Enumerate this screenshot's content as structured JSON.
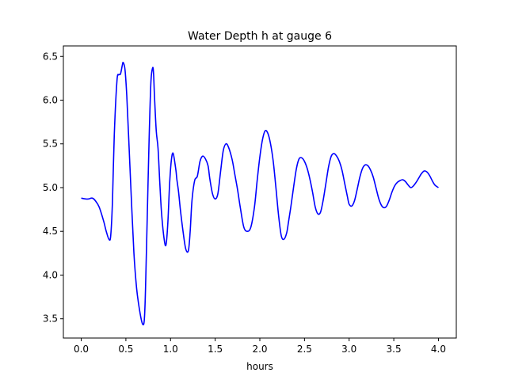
{
  "chart_data": {
    "type": "line",
    "title": "Water Depth h at gauge 6",
    "xlabel": "hours",
    "ylabel": "",
    "xlim": [
      -0.2,
      4.2
    ],
    "ylim": [
      3.28,
      6.62
    ],
    "xticks": [
      0.0,
      0.5,
      1.0,
      1.5,
      2.0,
      2.5,
      3.0,
      3.5,
      4.0
    ],
    "xtick_labels": [
      "0.0",
      "0.5",
      "1.0",
      "1.5",
      "2.0",
      "2.5",
      "3.0",
      "3.5",
      "4.0"
    ],
    "yticks": [
      3.5,
      4.0,
      4.5,
      5.0,
      5.5,
      6.0,
      6.5
    ],
    "ytick_labels": [
      "3.5",
      "4.0",
      "4.5",
      "5.0",
      "5.5",
      "6.0",
      "6.5"
    ],
    "grid": false,
    "series": [
      {
        "color": "#0000ff",
        "x": [
          0.0,
          0.05,
          0.08,
          0.12,
          0.15,
          0.2,
          0.25,
          0.28,
          0.31,
          0.33,
          0.35,
          0.37,
          0.4,
          0.42,
          0.44,
          0.46,
          0.47,
          0.49,
          0.51,
          0.53,
          0.56,
          0.59,
          0.62,
          0.65,
          0.68,
          0.7,
          0.71,
          0.72,
          0.74,
          0.76,
          0.78,
          0.8,
          0.81,
          0.82,
          0.84,
          0.86,
          0.88,
          0.9,
          0.93,
          0.95,
          0.97,
          0.99,
          1.01,
          1.03,
          1.06,
          1.07,
          1.09,
          1.11,
          1.14,
          1.17,
          1.2,
          1.22,
          1.24,
          1.27,
          1.3,
          1.33,
          1.36,
          1.39,
          1.42,
          1.44,
          1.47,
          1.5,
          1.53,
          1.56,
          1.59,
          1.62,
          1.65,
          1.69,
          1.72,
          1.75,
          1.78,
          1.82,
          1.86,
          1.9,
          1.94,
          1.97,
          2.0,
          2.03,
          2.06,
          2.09,
          2.12,
          2.15,
          2.18,
          2.21,
          2.24,
          2.27,
          2.3,
          2.32,
          2.35,
          2.38,
          2.41,
          2.44,
          2.47,
          2.5,
          2.53,
          2.56,
          2.59,
          2.62,
          2.65,
          2.68,
          2.71,
          2.74,
          2.77,
          2.8,
          2.83,
          2.86,
          2.89,
          2.92,
          2.95,
          2.98,
          3.0,
          3.03,
          3.06,
          3.09,
          3.12,
          3.15,
          3.18,
          3.21,
          3.24,
          3.27,
          3.3,
          3.33,
          3.36,
          3.39,
          3.42,
          3.45,
          3.48,
          3.51,
          3.54,
          3.57,
          3.6,
          3.63,
          3.66,
          3.69,
          3.72,
          3.75,
          3.78,
          3.81,
          3.84,
          3.87,
          3.9,
          3.93,
          3.96,
          4.0
        ],
        "y": [
          4.88,
          4.87,
          4.87,
          4.88,
          4.86,
          4.78,
          4.62,
          4.5,
          4.41,
          4.45,
          4.85,
          5.6,
          6.22,
          6.29,
          6.3,
          6.4,
          6.43,
          6.35,
          6.05,
          5.6,
          4.9,
          4.25,
          3.85,
          3.62,
          3.46,
          3.44,
          3.55,
          3.85,
          4.7,
          5.55,
          6.2,
          6.37,
          6.3,
          6.05,
          5.65,
          5.45,
          5.05,
          4.7,
          4.4,
          4.35,
          4.6,
          5.05,
          5.32,
          5.39,
          5.2,
          5.1,
          4.95,
          4.75,
          4.5,
          4.3,
          4.28,
          4.5,
          4.85,
          5.08,
          5.13,
          5.3,
          5.36,
          5.33,
          5.25,
          5.1,
          4.93,
          4.87,
          4.93,
          5.18,
          5.42,
          5.5,
          5.46,
          5.32,
          5.15,
          4.98,
          4.78,
          4.55,
          4.5,
          4.55,
          4.78,
          5.08,
          5.35,
          5.55,
          5.65,
          5.62,
          5.5,
          5.3,
          5.0,
          4.68,
          4.45,
          4.41,
          4.48,
          4.6,
          4.8,
          5.02,
          5.22,
          5.33,
          5.34,
          5.3,
          5.22,
          5.1,
          4.95,
          4.78,
          4.7,
          4.72,
          4.86,
          5.05,
          5.24,
          5.36,
          5.39,
          5.36,
          5.3,
          5.2,
          5.05,
          4.9,
          4.81,
          4.79,
          4.85,
          4.98,
          5.12,
          5.22,
          5.26,
          5.25,
          5.2,
          5.12,
          5.0,
          4.88,
          4.8,
          4.77,
          4.79,
          4.86,
          4.95,
          5.02,
          5.06,
          5.08,
          5.09,
          5.07,
          5.03,
          5.0,
          5.02,
          5.06,
          5.11,
          5.16,
          5.19,
          5.18,
          5.14,
          5.08,
          5.03,
          5.0
        ]
      }
    ]
  }
}
